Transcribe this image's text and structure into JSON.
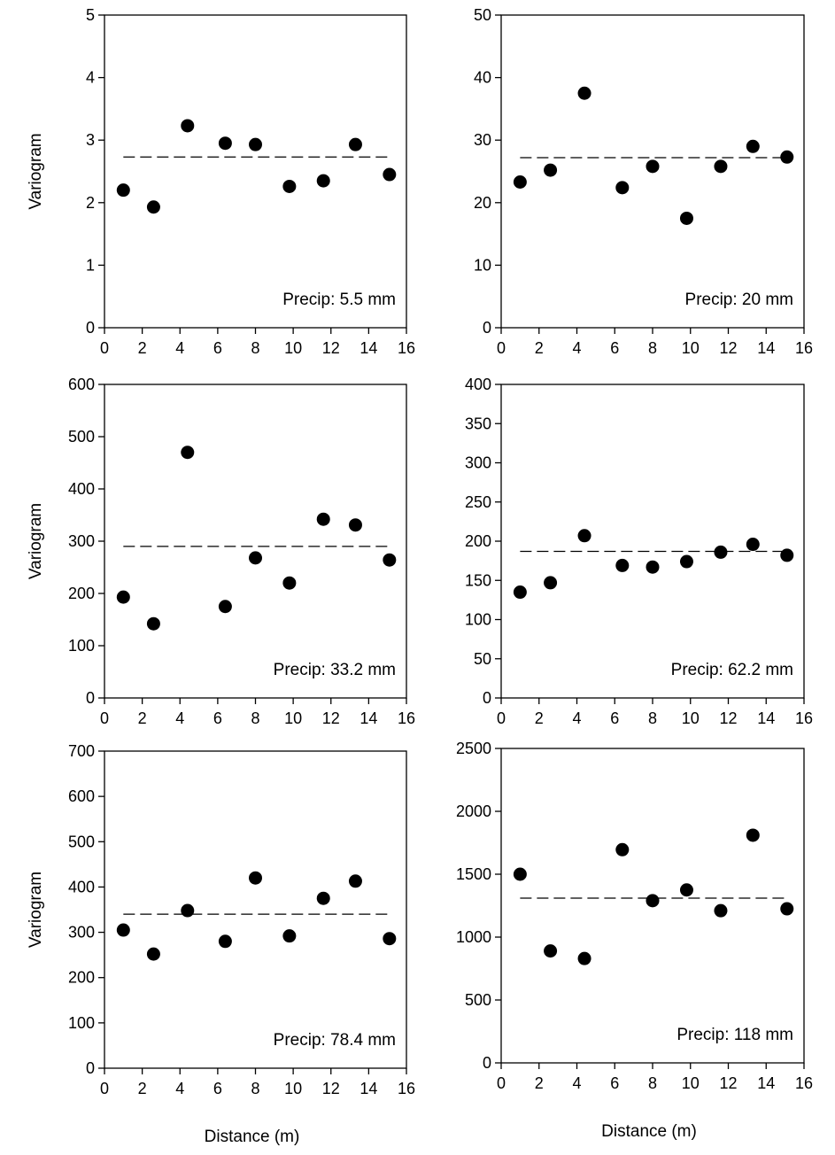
{
  "chart_data": [
    {
      "type": "scatter",
      "annotation": "Precip: 5.5 mm",
      "ylabel": "Variogram",
      "xlabel": "",
      "xlim": [
        0,
        16
      ],
      "ylim": [
        0,
        5
      ],
      "xticks": [
        0,
        2,
        4,
        6,
        8,
        10,
        12,
        14,
        16
      ],
      "yticks": [
        0,
        1,
        2,
        3,
        4,
        5
      ],
      "x": [
        1.0,
        2.6,
        4.4,
        6.4,
        8.0,
        9.8,
        11.6,
        13.3,
        15.1
      ],
      "y": [
        2.2,
        1.93,
        3.23,
        2.95,
        2.93,
        2.26,
        2.35,
        2.93,
        2.45
      ],
      "sill": 2.73
    },
    {
      "type": "scatter",
      "annotation": "Precip: 20 mm",
      "ylabel": "",
      "xlabel": "",
      "xlim": [
        0,
        16
      ],
      "ylim": [
        0,
        50
      ],
      "xticks": [
        0,
        2,
        4,
        6,
        8,
        10,
        12,
        14,
        16
      ],
      "yticks": [
        0,
        10,
        20,
        30,
        40,
        50
      ],
      "x": [
        1.0,
        2.6,
        4.4,
        6.4,
        8.0,
        9.8,
        11.6,
        13.3,
        15.1
      ],
      "y": [
        23.3,
        25.2,
        37.5,
        22.4,
        25.8,
        17.5,
        25.8,
        29.0,
        27.3
      ],
      "sill": 27.2
    },
    {
      "type": "scatter",
      "annotation": "Precip: 33.2 mm",
      "ylabel": "Variogram",
      "xlabel": "",
      "xlim": [
        0,
        16
      ],
      "ylim": [
        0,
        600
      ],
      "xticks": [
        0,
        2,
        4,
        6,
        8,
        10,
        12,
        14,
        16
      ],
      "yticks": [
        0,
        100,
        200,
        300,
        400,
        500,
        600
      ],
      "x": [
        1.0,
        2.6,
        4.4,
        6.4,
        8.0,
        9.8,
        11.6,
        13.3,
        15.1
      ],
      "y": [
        193,
        142,
        470,
        175,
        268,
        220,
        342,
        331,
        264
      ],
      "sill": 290
    },
    {
      "type": "scatter",
      "annotation": "Precip: 62.2 mm",
      "ylabel": "",
      "xlabel": "",
      "xlim": [
        0,
        16
      ],
      "ylim": [
        0,
        400
      ],
      "xticks": [
        0,
        2,
        4,
        6,
        8,
        10,
        12,
        14,
        16
      ],
      "yticks": [
        0,
        50,
        100,
        150,
        200,
        250,
        300,
        350,
        400
      ],
      "x": [
        1.0,
        2.6,
        4.4,
        6.4,
        8.0,
        9.8,
        11.6,
        13.3,
        15.1
      ],
      "y": [
        135,
        147,
        207,
        169,
        167,
        174,
        186,
        196,
        182
      ],
      "sill": 187
    },
    {
      "type": "scatter",
      "annotation": "Precip: 78.4 mm",
      "ylabel": "Variogram",
      "xlabel": "Distance (m)",
      "xlim": [
        0,
        16
      ],
      "ylim": [
        0,
        700
      ],
      "xticks": [
        0,
        2,
        4,
        6,
        8,
        10,
        12,
        14,
        16
      ],
      "yticks": [
        0,
        100,
        200,
        300,
        400,
        500,
        600,
        700
      ],
      "x": [
        1.0,
        2.6,
        4.4,
        6.4,
        8.0,
        9.8,
        11.6,
        13.3,
        15.1
      ],
      "y": [
        305,
        252,
        348,
        280,
        420,
        292,
        375,
        413,
        286
      ],
      "sill": 340
    },
    {
      "type": "scatter",
      "annotation": "Precip: 118 mm",
      "ylabel": "",
      "xlabel": "Distance (m)",
      "xlim": [
        0,
        16
      ],
      "ylim": [
        0,
        2500
      ],
      "xticks": [
        0,
        2,
        4,
        6,
        8,
        10,
        12,
        14,
        16
      ],
      "yticks": [
        0,
        500,
        1000,
        1500,
        2000,
        2500
      ],
      "x": [
        1.0,
        2.6,
        4.4,
        6.4,
        8.0,
        9.8,
        11.6,
        13.3,
        15.1
      ],
      "y": [
        1500,
        890,
        830,
        1695,
        1290,
        1375,
        1210,
        1810,
        1225
      ],
      "sill": 1310
    }
  ]
}
